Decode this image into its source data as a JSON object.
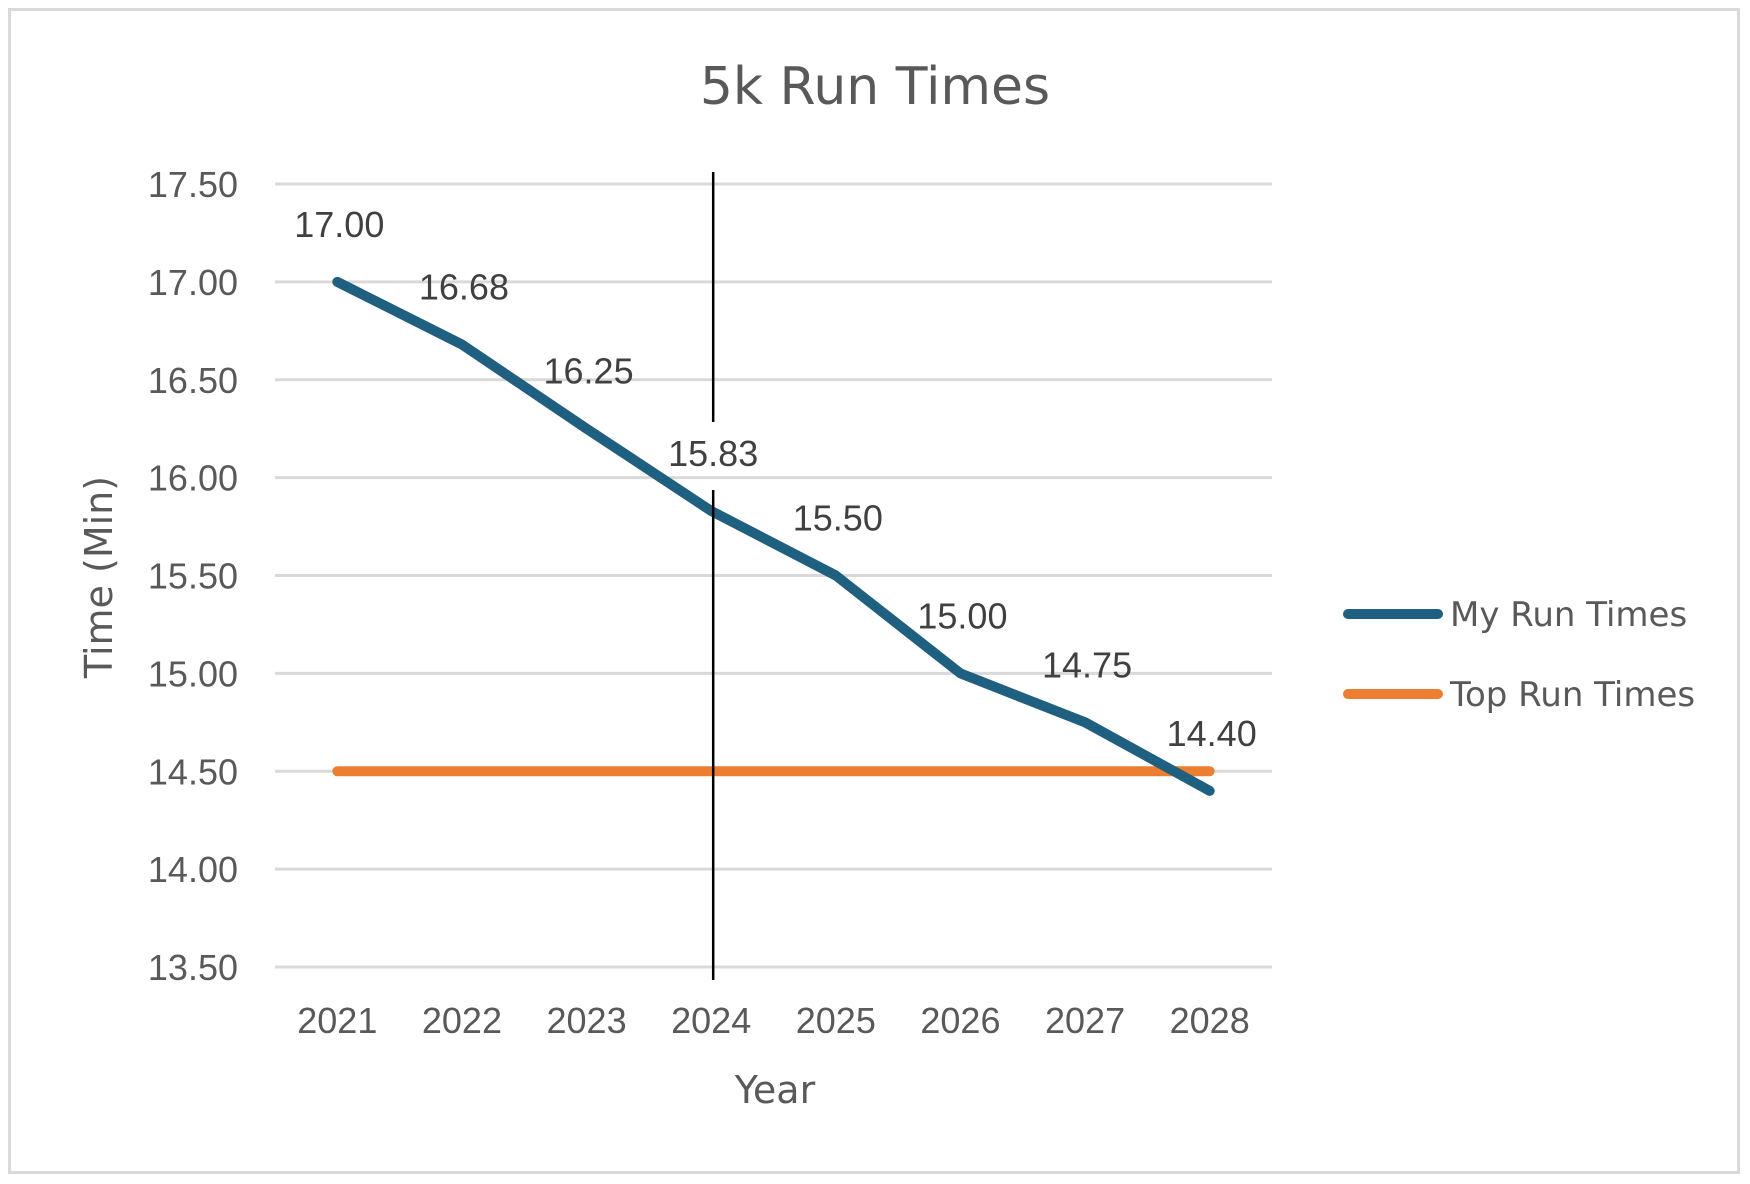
{
  "chart_data": {
    "type": "line",
    "title": "5k Run Times",
    "xlabel": "Year",
    "ylabel": "Time (Min)",
    "categories": [
      "2021",
      "2022",
      "2023",
      "2024",
      "2025",
      "2026",
      "2027",
      "2028"
    ],
    "ylim": [
      13.5,
      17.5
    ],
    "yticks": [
      "13.50",
      "14.00",
      "14.50",
      "15.00",
      "15.50",
      "16.00",
      "16.50",
      "17.00",
      "17.50"
    ],
    "grid": true,
    "legend_position": "right",
    "marker_line_category": "2024",
    "series": [
      {
        "name": "My Run Times",
        "color": "#1f5f7f",
        "values": [
          17.0,
          16.68,
          16.25,
          15.83,
          15.5,
          15.0,
          14.75,
          14.4
        ],
        "data_labels": [
          "17.00",
          "16.68",
          "16.25",
          "15.83",
          "15.50",
          "15.00",
          "14.75",
          "14.40"
        ]
      },
      {
        "name": "Top Run Times",
        "color": "#ed7d31",
        "values": [
          14.5,
          14.5,
          14.5,
          14.5,
          14.5,
          14.5,
          14.5,
          14.5
        ]
      }
    ]
  }
}
